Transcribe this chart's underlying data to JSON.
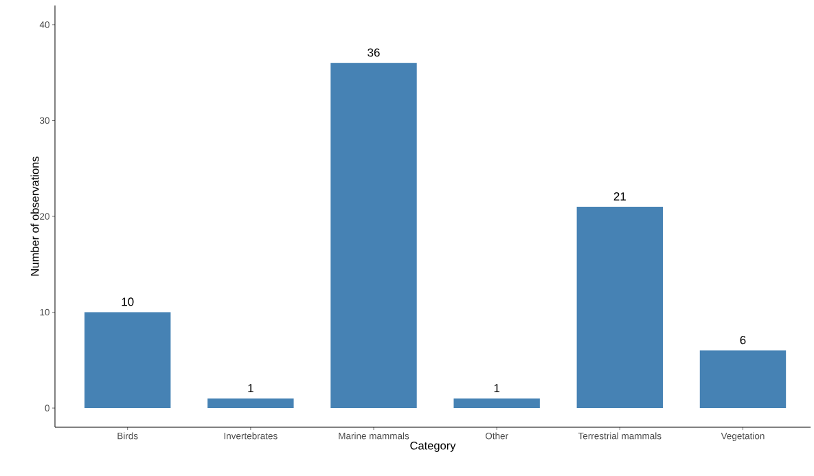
{
  "chart_data": {
    "type": "bar",
    "xlabel": "Category",
    "ylabel": "Number of observations",
    "categories": [
      "Birds",
      "Invertebrates",
      "Marine mammals",
      "Other",
      "Terrestrial mammals",
      "Vegetation"
    ],
    "values": [
      10,
      1,
      36,
      1,
      21,
      6
    ],
    "color": "#4682b4",
    "ylim": [
      -2,
      42
    ],
    "yticks": [
      0,
      10,
      20,
      30,
      40
    ],
    "data_labels": true,
    "grid": false
  }
}
